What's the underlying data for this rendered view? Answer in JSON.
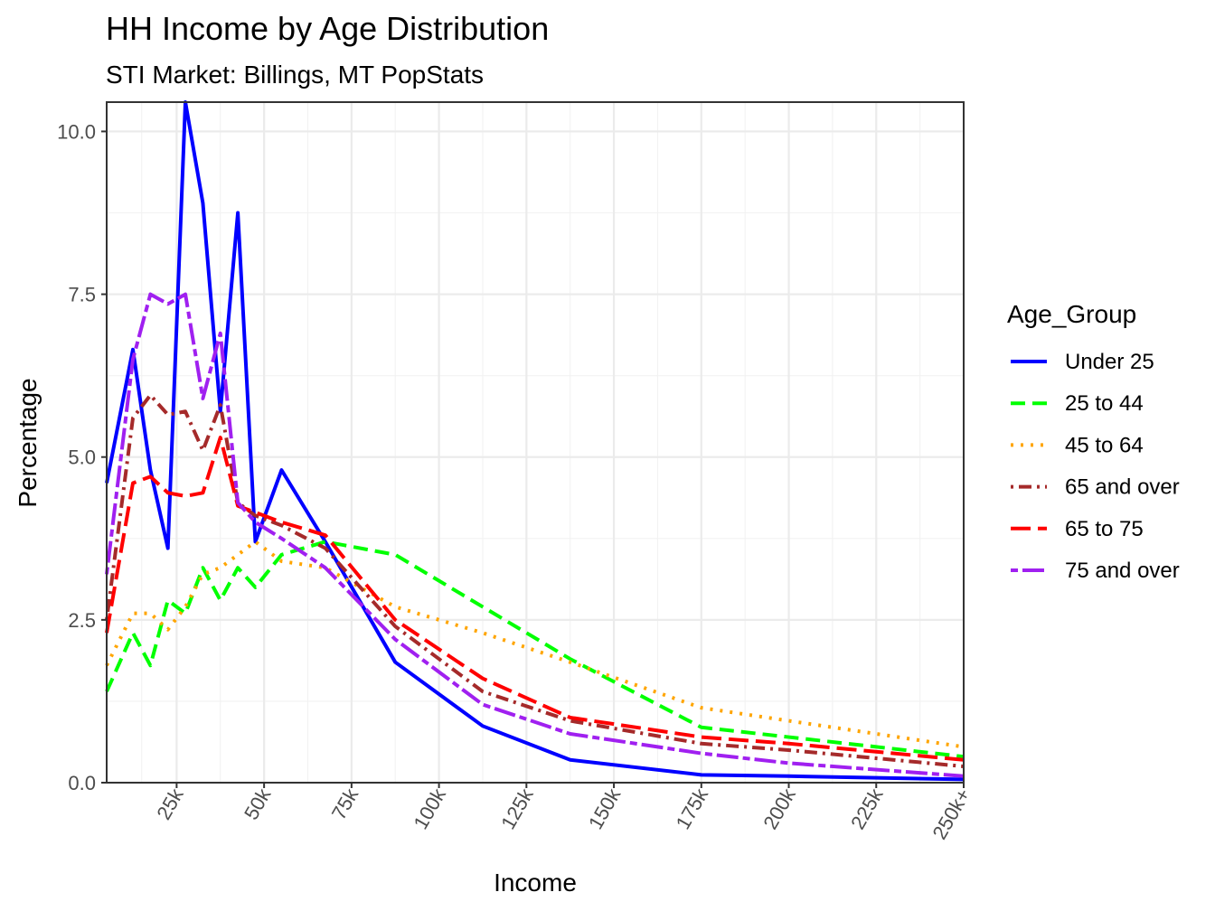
{
  "chart_data": {
    "type": "line",
    "title": "HH Income by Age Distribution",
    "subtitle": "STI Market: Billings, MT PopStats",
    "xlabel": "Income",
    "ylabel": "Percentage",
    "xlim": [
      5000,
      250000
    ],
    "ylim": [
      0,
      10.45
    ],
    "x_ticks": [
      {
        "value": 25000,
        "label": "25k"
      },
      {
        "value": 50000,
        "label": "50k"
      },
      {
        "value": 75000,
        "label": "75k"
      },
      {
        "value": 100000,
        "label": "100k"
      },
      {
        "value": 125000,
        "label": "125k"
      },
      {
        "value": 150000,
        "label": "150k"
      },
      {
        "value": 175000,
        "label": "175k"
      },
      {
        "value": 200000,
        "label": "200k"
      },
      {
        "value": 225000,
        "label": "225k"
      },
      {
        "value": 250000,
        "label": "250k+"
      }
    ],
    "y_ticks": [
      {
        "value": 0,
        "label": "0.0"
      },
      {
        "value": 2.5,
        "label": "2.5"
      },
      {
        "value": 5,
        "label": "5.0"
      },
      {
        "value": 7.5,
        "label": "7.5"
      },
      {
        "value": 10,
        "label": "10.0"
      }
    ],
    "grid": true,
    "legend": {
      "title": "Age_Group",
      "position": "right"
    },
    "x": [
      5000,
      12500,
      17500,
      22500,
      27500,
      32500,
      37500,
      42500,
      47500,
      55000,
      67500,
      87500,
      112500,
      137500,
      175000,
      200000,
      250000
    ],
    "series": [
      {
        "name": "Under 25",
        "color": "#0000ff",
        "dash": "solid",
        "values": [
          4.6,
          6.65,
          4.8,
          3.6,
          10.45,
          8.9,
          5.7,
          8.75,
          3.7,
          4.8,
          3.7,
          1.85,
          0.87,
          0.35,
          0.12,
          0.1,
          0.05
        ]
      },
      {
        "name": "25 to 44",
        "color": "#00ff00",
        "dash": "dashed",
        "values": [
          1.4,
          2.3,
          1.8,
          2.8,
          2.6,
          3.3,
          2.8,
          3.3,
          3.0,
          3.5,
          3.7,
          3.5,
          2.7,
          1.9,
          0.85,
          0.7,
          0.4
        ]
      },
      {
        "name": "45 to 64",
        "color": "#ffa500",
        "dash": "dotted",
        "values": [
          1.8,
          2.6,
          2.6,
          2.35,
          2.7,
          3.2,
          3.3,
          3.5,
          3.7,
          3.4,
          3.3,
          2.7,
          2.3,
          1.85,
          1.15,
          0.95,
          0.55
        ]
      },
      {
        "name": "65 and over",
        "color": "#a52a2a",
        "dash": "dotdash",
        "values": [
          2.5,
          5.6,
          5.95,
          5.65,
          5.7,
          5.1,
          5.8,
          4.3,
          4.1,
          3.95,
          3.6,
          2.4,
          1.4,
          0.95,
          0.6,
          0.5,
          0.25
        ]
      },
      {
        "name": "65 to 75",
        "color": "#ff0000",
        "dash": "longdash",
        "values": [
          2.3,
          4.6,
          4.7,
          4.45,
          4.4,
          4.45,
          5.3,
          4.25,
          4.15,
          4.0,
          3.8,
          2.5,
          1.6,
          1.0,
          0.7,
          0.6,
          0.35
        ]
      },
      {
        "name": "75 and over",
        "color": "#a020f0",
        "dash": "twodash",
        "values": [
          3.2,
          6.5,
          7.5,
          7.35,
          7.5,
          5.9,
          6.9,
          4.3,
          4.0,
          3.75,
          3.3,
          2.2,
          1.2,
          0.75,
          0.45,
          0.3,
          0.1
        ]
      }
    ]
  }
}
